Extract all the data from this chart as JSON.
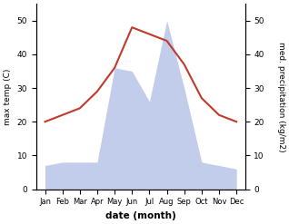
{
  "months": [
    "Jan",
    "Feb",
    "Mar",
    "Apr",
    "May",
    "Jun",
    "Jul",
    "Aug",
    "Sep",
    "Oct",
    "Nov",
    "Dec"
  ],
  "x": [
    1,
    2,
    3,
    4,
    5,
    6,
    7,
    8,
    9,
    10,
    11,
    12
  ],
  "temperature": [
    20,
    22,
    24,
    29,
    36,
    48,
    46,
    44,
    37,
    27,
    22,
    20
  ],
  "precipitation": [
    7,
    8,
    8,
    8,
    36,
    35,
    26,
    50,
    30,
    8,
    7,
    6
  ],
  "temp_color": "#c0392b",
  "precip_fill_color": "#b8c4e8",
  "xlabel": "date (month)",
  "ylabel_left": "max temp (C)",
  "ylabel_right": "med. precipitation (kg/m2)",
  "ylim_left": [
    0,
    55
  ],
  "ylim_right": [
    0,
    55
  ],
  "yticks_left": [
    0,
    10,
    20,
    30,
    40,
    50
  ],
  "yticks_right": [
    0,
    10,
    20,
    30,
    40,
    50
  ],
  "figsize": [
    3.18,
    2.47
  ],
  "dpi": 100
}
